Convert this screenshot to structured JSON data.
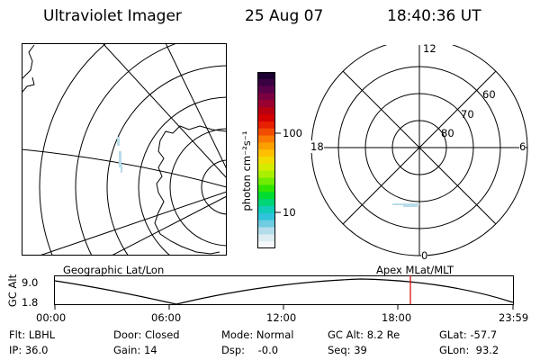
{
  "header": {
    "title": "Ultraviolet Imager",
    "date": "25 Aug 07",
    "time": "18:40:36 UT"
  },
  "colorbar": {
    "unit_label": "photon cm⁻²s⁻¹",
    "ticks": [
      "100",
      "10"
    ],
    "colors": [
      "#1a0030",
      "#3a0040",
      "#5a004a",
      "#7a0040",
      "#9a0030",
      "#b80010",
      "#d40000",
      "#e62000",
      "#f24c00",
      "#f87a00",
      "#fca000",
      "#ffc000",
      "#f0dc00",
      "#d4ec00",
      "#a8f000",
      "#70ec00",
      "#30e400",
      "#00dc30",
      "#00d478",
      "#10ccb8",
      "#30c4dc",
      "#70cce0",
      "#b4dceb",
      "#dcecf2",
      "#f4f8fa"
    ]
  },
  "polar_plot": {
    "mlt_labels": {
      "top": "12",
      "left": "18",
      "right": "6",
      "bottom": "0"
    },
    "lat_labels": [
      "60",
      "70",
      "80"
    ]
  },
  "timeline": {
    "ylabel": "GC Alt",
    "y_ticks": [
      "9.0",
      "1.8"
    ],
    "left_label": "Geographic Lat/Lon",
    "right_label": "Apex MLat/MLT",
    "x_ticks": [
      "00:00",
      "06:00",
      "12:00",
      "18:00",
      "23:59"
    ],
    "marker_color": "#d40000"
  },
  "status": {
    "row1": [
      "Flt: LBHL",
      "Door: Closed",
      "Mode: Normal",
      "GC Alt: 8.2 Re",
      "GLat: -57.7"
    ],
    "row2": [
      "IP: 36.0",
      "Gain: 14",
      "Dsp:    -0.0",
      "Seq: 39",
      "GLon:  93.2"
    ]
  }
}
